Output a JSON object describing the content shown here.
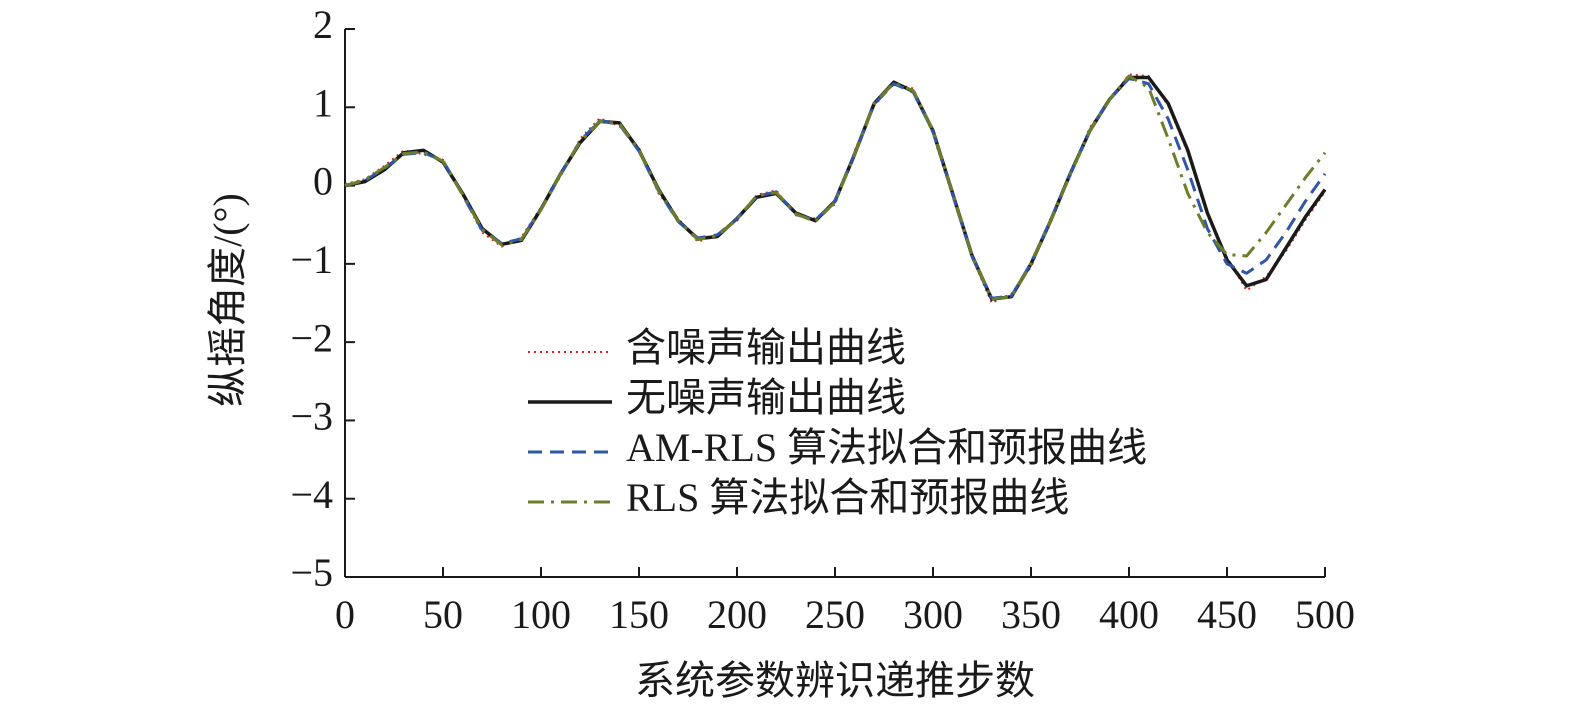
{
  "chart_data": {
    "type": "line",
    "xlabel": "系统参数辨识递推步数",
    "ylabel": "纵摇角度/(°)",
    "x": [
      0,
      10,
      20,
      30,
      40,
      50,
      60,
      70,
      80,
      90,
      100,
      110,
      120,
      130,
      140,
      150,
      160,
      170,
      180,
      190,
      200,
      210,
      220,
      230,
      240,
      250,
      260,
      270,
      280,
      290,
      300,
      310,
      320,
      330,
      340,
      350,
      360,
      370,
      380,
      390,
      400,
      410,
      420,
      430,
      440,
      450,
      460,
      470,
      480,
      490,
      500
    ],
    "xlim": [
      0,
      500
    ],
    "xticks": [
      0,
      50,
      100,
      150,
      200,
      250,
      300,
      350,
      400,
      450,
      500
    ],
    "ylim": [
      -5,
      2
    ],
    "yticks": [
      {
        "value": -5,
        "label": "−5"
      },
      {
        "value": -4,
        "label": "−4"
      },
      {
        "value": -3,
        "label": "−3"
      },
      {
        "value": -2,
        "label": "−2"
      },
      {
        "value": -1,
        "label": "−1"
      },
      0,
      1,
      2
    ],
    "series": [
      {
        "name": "含噪声输出曲线",
        "color": "#d62728",
        "style": "dotted",
        "values": [
          0.02,
          0.08,
          0.25,
          0.45,
          0.4,
          0.33,
          -0.12,
          -0.6,
          -0.78,
          -0.66,
          -0.28,
          0.12,
          0.6,
          0.86,
          0.76,
          0.48,
          -0.1,
          -0.42,
          -0.72,
          -0.62,
          -0.45,
          -0.12,
          -0.06,
          -0.38,
          -0.42,
          -0.24,
          0.44,
          1.02,
          1.3,
          1.24,
          0.66,
          -0.14,
          -0.92,
          -1.5,
          -1.38,
          -1.04,
          -0.42,
          0.12,
          0.74,
          1.08,
          1.42,
          1.4,
          1.02,
          0.42,
          -0.38,
          -0.92,
          -1.34,
          -1.16,
          -0.84,
          -0.44,
          -0.08
        ]
      },
      {
        "name": "无噪声输出曲线",
        "color": "#1a1a1a",
        "style": "solid",
        "values": [
          0,
          0.05,
          0.2,
          0.42,
          0.45,
          0.3,
          -0.1,
          -0.55,
          -0.75,
          -0.7,
          -0.3,
          0.15,
          0.55,
          0.82,
          0.8,
          0.45,
          -0.05,
          -0.45,
          -0.68,
          -0.65,
          -0.42,
          -0.15,
          -0.1,
          -0.35,
          -0.45,
          -0.2,
          0.4,
          1.05,
          1.32,
          1.2,
          0.7,
          -0.1,
          -0.9,
          -1.45,
          -1.42,
          -1.0,
          -0.45,
          0.15,
          0.7,
          1.1,
          1.38,
          1.38,
          1.05,
          0.45,
          -0.35,
          -0.95,
          -1.28,
          -1.2,
          -0.8,
          -0.4,
          -0.05
        ]
      },
      {
        "name": "AM-RLS 算法拟合和预报曲线",
        "color": "#2f56a8",
        "style": "dashed",
        "values": [
          0,
          0.06,
          0.22,
          0.4,
          0.42,
          0.32,
          -0.12,
          -0.57,
          -0.74,
          -0.68,
          -0.3,
          0.14,
          0.57,
          0.83,
          0.78,
          0.44,
          -0.07,
          -0.46,
          -0.67,
          -0.63,
          -0.42,
          -0.14,
          -0.08,
          -0.37,
          -0.44,
          -0.2,
          0.41,
          1.04,
          1.3,
          1.19,
          0.69,
          -0.11,
          -0.91,
          -1.44,
          -1.41,
          -0.99,
          -0.44,
          0.15,
          0.7,
          1.1,
          1.37,
          1.3,
          0.85,
          0.2,
          -0.55,
          -1.0,
          -1.12,
          -0.95,
          -0.6,
          -0.2,
          0.15
        ]
      },
      {
        "name": "RLS 算法拟合和预报曲线",
        "color": "#6b7f2a",
        "style": "dashdot",
        "values": [
          0,
          0.07,
          0.23,
          0.41,
          0.43,
          0.31,
          -0.11,
          -0.56,
          -0.76,
          -0.69,
          -0.31,
          0.15,
          0.56,
          0.82,
          0.79,
          0.45,
          -0.06,
          -0.45,
          -0.69,
          -0.64,
          -0.43,
          -0.13,
          -0.09,
          -0.36,
          -0.46,
          -0.21,
          0.4,
          1.05,
          1.31,
          1.21,
          0.7,
          -0.1,
          -0.9,
          -1.45,
          -1.42,
          -1.0,
          -0.45,
          0.14,
          0.7,
          1.1,
          1.4,
          1.25,
          0.6,
          -0.1,
          -0.6,
          -0.88,
          -0.9,
          -0.6,
          -0.25,
          0.1,
          0.42
        ]
      }
    ]
  }
}
